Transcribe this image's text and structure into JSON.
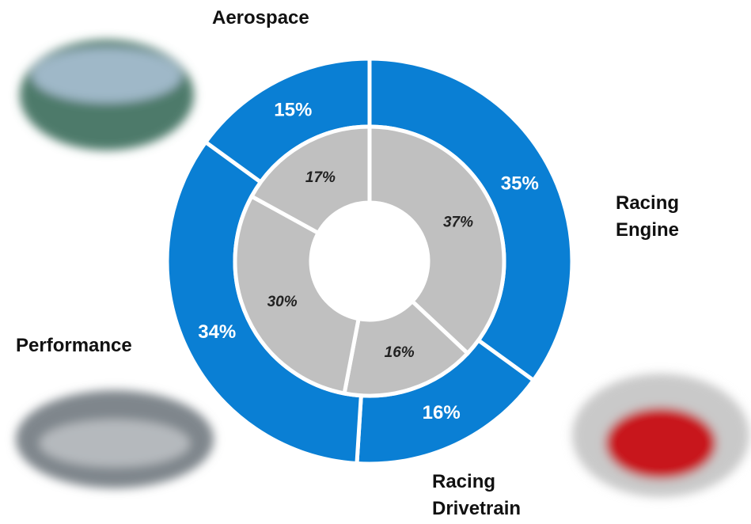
{
  "chart_data": {
    "type": "donut",
    "categories": [
      "Racing Engine",
      "Racing Drivetrain",
      "Performance",
      "Aerospace"
    ],
    "series": [
      {
        "color": "#0a7fd4",
        "values": [
          35,
          16,
          34,
          15
        ],
        "value_labels": [
          "35%",
          "16%",
          "34%",
          "15%"
        ]
      },
      {
        "color": "#c0c0c0",
        "values": [
          37,
          16,
          30,
          17
        ],
        "value_labels": [
          "37%",
          "16%",
          "30%",
          "17%"
        ]
      }
    ]
  }
}
